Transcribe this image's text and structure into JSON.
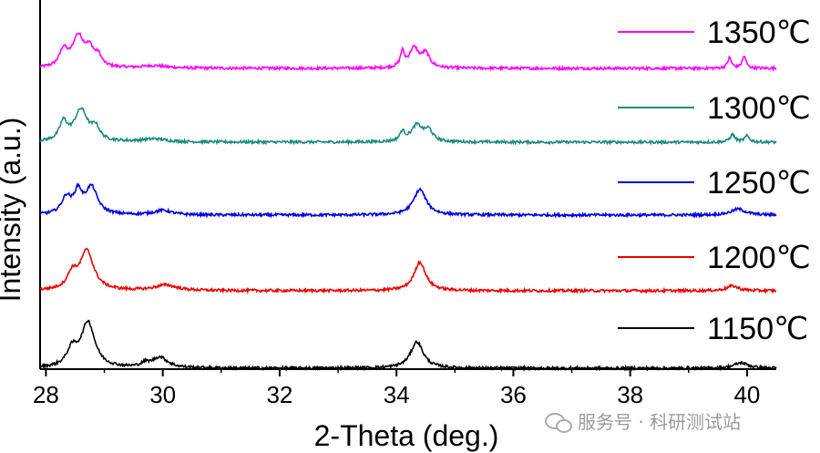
{
  "chart_data": {
    "type": "line",
    "title": "",
    "xlabel": "2-Theta (deg.)",
    "ylabel": "Intensity (a.u.)",
    "xlim": [
      27.9,
      40.5
    ],
    "xticks": [
      28,
      30,
      32,
      34,
      36,
      38,
      40
    ],
    "y_ticks_shown": false,
    "legend_position": "right, beside each trace",
    "series": [
      {
        "name": "1350℃",
        "color": "#ff00ff",
        "offset": 4,
        "peaks": [
          [
            28.55,
            1.0,
            0.12
          ],
          [
            28.75,
            0.55,
            0.1
          ],
          [
            28.3,
            0.55,
            0.08
          ],
          [
            28.9,
            0.3,
            0.06
          ],
          [
            29.85,
            0.08,
            0.25
          ],
          [
            34.1,
            0.5,
            0.04
          ],
          [
            34.3,
            0.65,
            0.1
          ],
          [
            34.5,
            0.45,
            0.08
          ],
          [
            39.7,
            0.35,
            0.04
          ],
          [
            39.95,
            0.4,
            0.04
          ]
        ]
      },
      {
        "name": "1300℃",
        "color": "#1a8c82",
        "offset": 3,
        "peaks": [
          [
            28.6,
            1.05,
            0.14
          ],
          [
            28.3,
            0.6,
            0.08
          ],
          [
            28.85,
            0.4,
            0.08
          ],
          [
            29.85,
            0.1,
            0.25
          ],
          [
            34.1,
            0.3,
            0.05
          ],
          [
            34.35,
            0.55,
            0.12
          ],
          [
            34.55,
            0.35,
            0.08
          ],
          [
            39.75,
            0.25,
            0.05
          ],
          [
            40.0,
            0.2,
            0.05
          ]
        ]
      },
      {
        "name": "1250℃",
        "color": "#0000dd",
        "offset": 2,
        "peaks": [
          [
            28.35,
            0.55,
            0.1
          ],
          [
            28.55,
            0.7,
            0.08
          ],
          [
            28.78,
            0.9,
            0.12
          ],
          [
            30.0,
            0.15,
            0.18
          ],
          [
            34.4,
            0.85,
            0.13
          ],
          [
            39.85,
            0.2,
            0.15
          ]
        ]
      },
      {
        "name": "1200℃",
        "color": "#ee0000",
        "offset": 1,
        "peaks": [
          [
            28.7,
            1.3,
            0.14
          ],
          [
            28.45,
            0.5,
            0.1
          ],
          [
            30.05,
            0.18,
            0.22
          ],
          [
            34.4,
            0.95,
            0.12
          ],
          [
            39.75,
            0.16,
            0.12
          ]
        ]
      },
      {
        "name": "1150℃",
        "color": "#000000",
        "offset": 0,
        "peaks": [
          [
            28.72,
            1.5,
            0.14
          ],
          [
            28.45,
            0.55,
            0.11
          ],
          [
            29.95,
            0.35,
            0.16
          ],
          [
            29.7,
            0.12,
            0.08
          ],
          [
            34.35,
            0.88,
            0.13
          ],
          [
            39.9,
            0.18,
            0.14
          ]
        ]
      }
    ]
  },
  "watermark": {
    "text": "服务号 · 科研测试站"
  }
}
